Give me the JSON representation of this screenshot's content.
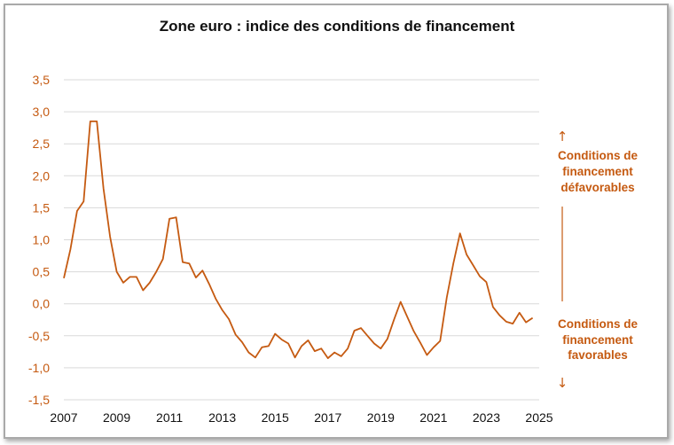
{
  "chart_data": {
    "type": "line",
    "title": "Zone euro : indice des conditions de financement",
    "xlabel": "",
    "ylabel": "",
    "xlim": [
      2007,
      2025
    ],
    "ylim": [
      -1.5,
      3.5
    ],
    "y_ticks": [
      "3,5",
      "3,0",
      "2,5",
      "2,0",
      "1,5",
      "1,0",
      "0,5",
      "0,0",
      "-0,5",
      "-1,0",
      "-1,5"
    ],
    "x_ticks": [
      "2007",
      "2009",
      "2011",
      "2013",
      "2015",
      "2017",
      "2019",
      "2021",
      "2023",
      "2025"
    ],
    "grid": "horizontal",
    "line_color": "#c55a11",
    "series": [
      {
        "x": [
          2007.0,
          2007.25,
          2007.5,
          2007.75,
          2008.0,
          2008.25,
          2008.5,
          2008.75,
          2009.0,
          2009.25,
          2009.5,
          2009.75,
          2010.0,
          2010.25,
          2010.5,
          2010.75,
          2011.0,
          2011.25,
          2011.5,
          2011.75,
          2012.0,
          2012.25,
          2012.5,
          2012.75,
          2013.0,
          2013.25,
          2013.5,
          2013.75,
          2014.0,
          2014.25,
          2014.5,
          2014.75,
          2015.0,
          2015.25,
          2015.5,
          2015.75,
          2016.0,
          2016.25,
          2016.5,
          2016.75,
          2017.0,
          2017.25,
          2017.5,
          2017.75,
          2018.0,
          2018.25,
          2018.5,
          2018.75,
          2019.0,
          2019.25,
          2019.5,
          2019.75,
          2020.0,
          2020.25,
          2020.5,
          2020.75,
          2021.0,
          2021.25,
          2021.5,
          2021.75,
          2022.0,
          2022.25,
          2022.5,
          2022.75,
          2023.0,
          2023.25,
          2023.5,
          2023.75,
          2024.0,
          2024.25,
          2024.5,
          2024.75
        ],
        "values": [
          0.4,
          0.85,
          1.45,
          1.6,
          2.85,
          2.85,
          1.8,
          1.05,
          0.5,
          0.33,
          0.42,
          0.42,
          0.21,
          0.33,
          0.5,
          0.7,
          1.33,
          1.35,
          0.65,
          0.63,
          0.41,
          0.52,
          0.31,
          0.08,
          -0.1,
          -0.24,
          -0.48,
          -0.6,
          -0.76,
          -0.84,
          -0.68,
          -0.66,
          -0.47,
          -0.56,
          -0.62,
          -0.84,
          -0.66,
          -0.57,
          -0.74,
          -0.7,
          -0.85,
          -0.76,
          -0.82,
          -0.7,
          -0.42,
          -0.38,
          -0.5,
          -0.62,
          -0.7,
          -0.55,
          -0.25,
          0.03,
          -0.2,
          -0.43,
          -0.61,
          -0.8,
          -0.68,
          -0.58,
          0.1,
          0.63,
          1.1,
          0.77,
          0.6,
          0.43,
          0.34,
          -0.05,
          -0.18,
          -0.28,
          -0.31,
          -0.14,
          -0.29,
          -0.22
        ]
      }
    ],
    "annotations": {
      "top": {
        "arrow": "↑",
        "lines": [
          "Conditions de",
          "financement",
          "défavorables"
        ]
      },
      "bottom": {
        "arrow": "↓",
        "lines": [
          "Conditions de",
          "financement",
          "favorables"
        ]
      }
    }
  }
}
